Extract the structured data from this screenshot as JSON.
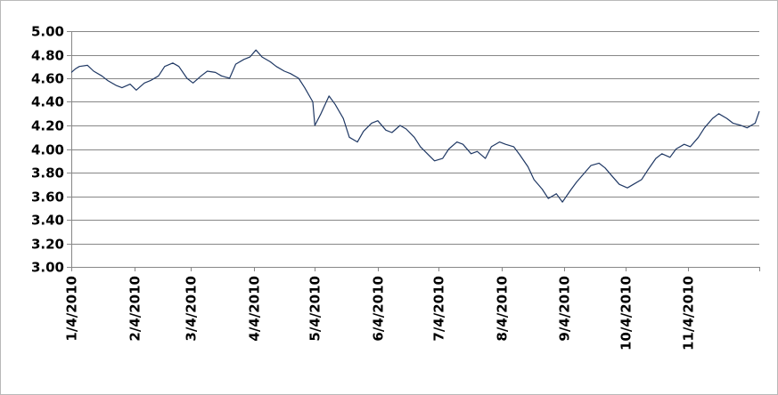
{
  "chart_data": {
    "type": "line",
    "title": "",
    "xlabel": "",
    "ylabel": "",
    "ylim": [
      3.0,
      5.0
    ],
    "grid": true,
    "legend": "none",
    "line_color": "#1f3864",
    "y_ticks": [
      "3.00",
      "3.20",
      "3.40",
      "3.60",
      "3.80",
      "4.00",
      "4.20",
      "4.40",
      "4.60",
      "4.80",
      "5.00"
    ],
    "x_ticks": [
      "1/4/2010",
      "2/4/2010",
      "3/4/2010",
      "4/4/2010",
      "5/4/2010",
      "6/4/2010",
      "7/4/2010",
      "8/4/2010",
      "9/4/2010",
      "10/4/2010",
      "11/4/2010"
    ],
    "series": [
      {
        "values": [
          [
            "2010-01-04",
            4.65
          ],
          [
            "2010-01-06",
            4.68
          ],
          [
            "2010-01-08",
            4.7
          ],
          [
            "2010-01-12",
            4.71
          ],
          [
            "2010-01-15",
            4.66
          ],
          [
            "2010-01-19",
            4.62
          ],
          [
            "2010-01-22",
            4.58
          ],
          [
            "2010-01-26",
            4.54
          ],
          [
            "2010-01-29",
            4.52
          ],
          [
            "2010-02-02",
            4.55
          ],
          [
            "2010-02-05",
            4.5
          ],
          [
            "2010-02-09",
            4.56
          ],
          [
            "2010-02-12",
            4.58
          ],
          [
            "2010-02-16",
            4.62
          ],
          [
            "2010-02-19",
            4.7
          ],
          [
            "2010-02-23",
            4.73
          ],
          [
            "2010-02-26",
            4.7
          ],
          [
            "2010-03-02",
            4.6
          ],
          [
            "2010-03-05",
            4.56
          ],
          [
            "2010-03-09",
            4.62
          ],
          [
            "2010-03-12",
            4.66
          ],
          [
            "2010-03-16",
            4.65
          ],
          [
            "2010-03-19",
            4.62
          ],
          [
            "2010-03-23",
            4.6
          ],
          [
            "2010-03-26",
            4.72
          ],
          [
            "2010-03-30",
            4.76
          ],
          [
            "2010-04-02",
            4.78
          ],
          [
            "2010-04-05",
            4.84
          ],
          [
            "2010-04-08",
            4.78
          ],
          [
            "2010-04-12",
            4.74
          ],
          [
            "2010-04-15",
            4.7
          ],
          [
            "2010-04-19",
            4.66
          ],
          [
            "2010-04-22",
            4.64
          ],
          [
            "2010-04-26",
            4.6
          ],
          [
            "2010-04-29",
            4.52
          ],
          [
            "2010-05-03",
            4.4
          ],
          [
            "2010-05-04",
            4.2
          ],
          [
            "2010-05-07",
            4.3
          ],
          [
            "2010-05-11",
            4.45
          ],
          [
            "2010-05-14",
            4.38
          ],
          [
            "2010-05-18",
            4.26
          ],
          [
            "2010-05-21",
            4.1
          ],
          [
            "2010-05-25",
            4.06
          ],
          [
            "2010-05-28",
            4.15
          ],
          [
            "2010-06-01",
            4.22
          ],
          [
            "2010-06-04",
            4.24
          ],
          [
            "2010-06-08",
            4.16
          ],
          [
            "2010-06-11",
            4.14
          ],
          [
            "2010-06-15",
            4.2
          ],
          [
            "2010-06-18",
            4.17
          ],
          [
            "2010-06-22",
            4.1
          ],
          [
            "2010-06-25",
            4.02
          ],
          [
            "2010-06-29",
            3.95
          ],
          [
            "2010-07-02",
            3.9
          ],
          [
            "2010-07-06",
            3.92
          ],
          [
            "2010-07-09",
            4.0
          ],
          [
            "2010-07-13",
            4.06
          ],
          [
            "2010-07-16",
            4.04
          ],
          [
            "2010-07-20",
            3.96
          ],
          [
            "2010-07-23",
            3.98
          ],
          [
            "2010-07-27",
            3.92
          ],
          [
            "2010-07-30",
            4.02
          ],
          [
            "2010-08-03",
            4.06
          ],
          [
            "2010-08-06",
            4.04
          ],
          [
            "2010-08-10",
            4.02
          ],
          [
            "2010-08-13",
            3.95
          ],
          [
            "2010-08-17",
            3.85
          ],
          [
            "2010-08-20",
            3.74
          ],
          [
            "2010-08-24",
            3.66
          ],
          [
            "2010-08-27",
            3.58
          ],
          [
            "2010-08-31",
            3.62
          ],
          [
            "2010-09-03",
            3.55
          ],
          [
            "2010-09-07",
            3.65
          ],
          [
            "2010-09-10",
            3.72
          ],
          [
            "2010-09-14",
            3.8
          ],
          [
            "2010-09-17",
            3.86
          ],
          [
            "2010-09-21",
            3.88
          ],
          [
            "2010-09-24",
            3.84
          ],
          [
            "2010-09-28",
            3.76
          ],
          [
            "2010-10-01",
            3.7
          ],
          [
            "2010-10-05",
            3.67
          ],
          [
            "2010-10-08",
            3.7
          ],
          [
            "2010-10-12",
            3.74
          ],
          [
            "2010-10-15",
            3.82
          ],
          [
            "2010-10-19",
            3.92
          ],
          [
            "2010-10-22",
            3.96
          ],
          [
            "2010-10-26",
            3.93
          ],
          [
            "2010-10-29",
            4.0
          ],
          [
            "2010-11-02",
            4.04
          ],
          [
            "2010-11-05",
            4.02
          ],
          [
            "2010-11-09",
            4.1
          ],
          [
            "2010-11-12",
            4.18
          ],
          [
            "2010-11-16",
            4.26
          ],
          [
            "2010-11-19",
            4.3
          ],
          [
            "2010-11-23",
            4.26
          ],
          [
            "2010-11-26",
            4.22
          ],
          [
            "2010-11-30",
            4.2
          ],
          [
            "2010-12-03",
            4.18
          ],
          [
            "2010-12-07",
            4.22
          ],
          [
            "2010-12-09",
            4.32
          ]
        ]
      }
    ]
  }
}
